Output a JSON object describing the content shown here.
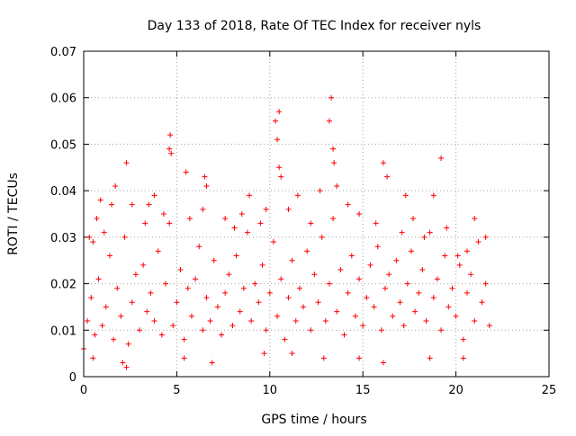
{
  "chart_data": {
    "type": "scatter",
    "title": "Day 133 of 2018, Rate Of TEC Index for receiver nyls",
    "xlabel": "GPS time / hours",
    "ylabel": "ROTI / TECUs",
    "xlim": [
      0,
      25
    ],
    "ylim": [
      0,
      0.07
    ],
    "x_ticks": [
      0,
      5,
      10,
      15,
      20,
      25
    ],
    "y_ticks": [
      0,
      0.01,
      0.02,
      0.03,
      0.04,
      0.05,
      0.06,
      0.07
    ],
    "x_tick_labels": [
      "0",
      "5",
      "10",
      "15",
      "20",
      "25"
    ],
    "y_tick_labels": [
      "0",
      "0.01",
      "0.02",
      "0.03",
      "0.04",
      "0.05",
      "0.06",
      "0.07"
    ],
    "grid": true,
    "marker": "+",
    "series": [
      {
        "name": "ROTI",
        "color": "#ff0000",
        "points": [
          [
            0.0,
            0.006
          ],
          [
            0.2,
            0.012
          ],
          [
            0.4,
            0.017
          ],
          [
            0.6,
            0.009
          ],
          [
            0.8,
            0.021
          ],
          [
            1.0,
            0.011
          ],
          [
            1.2,
            0.015
          ],
          [
            1.4,
            0.026
          ],
          [
            1.6,
            0.008
          ],
          [
            1.8,
            0.019
          ],
          [
            2.0,
            0.013
          ],
          [
            2.2,
            0.03
          ],
          [
            2.4,
            0.007
          ],
          [
            2.6,
            0.016
          ],
          [
            2.8,
            0.022
          ],
          [
            3.0,
            0.01
          ],
          [
            3.2,
            0.024
          ],
          [
            3.4,
            0.014
          ],
          [
            3.6,
            0.018
          ],
          [
            3.8,
            0.012
          ],
          [
            4.0,
            0.027
          ],
          [
            4.2,
            0.009
          ],
          [
            4.4,
            0.02
          ],
          [
            4.6,
            0.033
          ],
          [
            4.8,
            0.011
          ],
          [
            5.0,
            0.016
          ],
          [
            5.2,
            0.023
          ],
          [
            5.4,
            0.008
          ],
          [
            5.6,
            0.019
          ],
          [
            5.8,
            0.013
          ],
          [
            6.0,
            0.021
          ],
          [
            6.2,
            0.028
          ],
          [
            6.4,
            0.01
          ],
          [
            6.6,
            0.017
          ],
          [
            6.8,
            0.012
          ],
          [
            7.0,
            0.025
          ],
          [
            7.2,
            0.015
          ],
          [
            7.4,
            0.009
          ],
          [
            7.6,
            0.018
          ],
          [
            7.8,
            0.022
          ],
          [
            8.0,
            0.011
          ],
          [
            8.2,
            0.026
          ],
          [
            8.4,
            0.014
          ],
          [
            8.6,
            0.019
          ],
          [
            8.8,
            0.031
          ],
          [
            9.0,
            0.012
          ],
          [
            9.2,
            0.02
          ],
          [
            9.4,
            0.016
          ],
          [
            9.6,
            0.024
          ],
          [
            9.8,
            0.01
          ],
          [
            10.0,
            0.018
          ],
          [
            10.2,
            0.029
          ],
          [
            10.4,
            0.013
          ],
          [
            10.6,
            0.021
          ],
          [
            10.8,
            0.008
          ],
          [
            11.0,
            0.017
          ],
          [
            11.2,
            0.025
          ],
          [
            11.4,
            0.012
          ],
          [
            11.6,
            0.019
          ],
          [
            11.8,
            0.015
          ],
          [
            12.0,
            0.027
          ],
          [
            12.2,
            0.01
          ],
          [
            12.4,
            0.022
          ],
          [
            12.6,
            0.016
          ],
          [
            12.8,
            0.03
          ],
          [
            13.0,
            0.012
          ],
          [
            13.2,
            0.02
          ],
          [
            13.4,
            0.034
          ],
          [
            13.6,
            0.014
          ],
          [
            13.8,
            0.023
          ],
          [
            14.0,
            0.009
          ],
          [
            14.2,
            0.018
          ],
          [
            14.4,
            0.026
          ],
          [
            14.6,
            0.013
          ],
          [
            14.8,
            0.021
          ],
          [
            15.0,
            0.011
          ],
          [
            15.2,
            0.017
          ],
          [
            15.4,
            0.024
          ],
          [
            15.6,
            0.015
          ],
          [
            15.8,
            0.028
          ],
          [
            16.0,
            0.01
          ],
          [
            16.2,
            0.019
          ],
          [
            16.4,
            0.022
          ],
          [
            16.6,
            0.013
          ],
          [
            16.8,
            0.025
          ],
          [
            17.0,
            0.016
          ],
          [
            17.2,
            0.011
          ],
          [
            17.4,
            0.02
          ],
          [
            17.6,
            0.027
          ],
          [
            17.8,
            0.014
          ],
          [
            18.0,
            0.018
          ],
          [
            18.2,
            0.023
          ],
          [
            18.4,
            0.012
          ],
          [
            18.6,
            0.031
          ],
          [
            18.8,
            0.017
          ],
          [
            19.0,
            0.021
          ],
          [
            19.2,
            0.01
          ],
          [
            19.4,
            0.026
          ],
          [
            19.6,
            0.015
          ],
          [
            19.8,
            0.019
          ],
          [
            20.0,
            0.013
          ],
          [
            20.2,
            0.024
          ],
          [
            20.4,
            0.008
          ],
          [
            20.6,
            0.018
          ],
          [
            20.8,
            0.022
          ],
          [
            21.0,
            0.012
          ],
          [
            21.2,
            0.029
          ],
          [
            21.4,
            0.016
          ],
          [
            21.6,
            0.02
          ],
          [
            21.8,
            0.011
          ],
          [
            0.3,
            0.03
          ],
          [
            0.5,
            0.029
          ],
          [
            0.7,
            0.034
          ],
          [
            0.9,
            0.038
          ],
          [
            1.1,
            0.031
          ],
          [
            1.5,
            0.037
          ],
          [
            1.7,
            0.041
          ],
          [
            2.3,
            0.046
          ],
          [
            2.6,
            0.037
          ],
          [
            3.3,
            0.033
          ],
          [
            3.5,
            0.037
          ],
          [
            3.8,
            0.039
          ],
          [
            4.3,
            0.035
          ],
          [
            4.6,
            0.049
          ],
          [
            4.65,
            0.052
          ],
          [
            4.7,
            0.048
          ],
          [
            5.5,
            0.044
          ],
          [
            5.7,
            0.034
          ],
          [
            6.4,
            0.036
          ],
          [
            6.5,
            0.043
          ],
          [
            6.6,
            0.041
          ],
          [
            7.6,
            0.034
          ],
          [
            8.1,
            0.032
          ],
          [
            8.5,
            0.035
          ],
          [
            8.9,
            0.039
          ],
          [
            9.5,
            0.033
          ],
          [
            9.8,
            0.036
          ],
          [
            10.3,
            0.055
          ],
          [
            10.4,
            0.051
          ],
          [
            10.5,
            0.057
          ],
          [
            10.5,
            0.045
          ],
          [
            10.6,
            0.043
          ],
          [
            11.0,
            0.036
          ],
          [
            11.5,
            0.039
          ],
          [
            12.2,
            0.033
          ],
          [
            12.7,
            0.04
          ],
          [
            13.2,
            0.055
          ],
          [
            13.3,
            0.06
          ],
          [
            13.4,
            0.049
          ],
          [
            13.45,
            0.046
          ],
          [
            13.6,
            0.041
          ],
          [
            14.2,
            0.037
          ],
          [
            14.8,
            0.035
          ],
          [
            15.7,
            0.033
          ],
          [
            16.1,
            0.046
          ],
          [
            16.3,
            0.043
          ],
          [
            17.1,
            0.031
          ],
          [
            17.3,
            0.039
          ],
          [
            17.7,
            0.034
          ],
          [
            18.3,
            0.03
          ],
          [
            18.8,
            0.039
          ],
          [
            19.2,
            0.047
          ],
          [
            19.5,
            0.032
          ],
          [
            20.1,
            0.026
          ],
          [
            20.6,
            0.027
          ],
          [
            21.0,
            0.034
          ],
          [
            21.6,
            0.03
          ],
          [
            2.3,
            0.002
          ],
          [
            2.1,
            0.003
          ],
          [
            6.9,
            0.003
          ],
          [
            14.8,
            0.004
          ],
          [
            16.1,
            0.003
          ],
          [
            20.4,
            0.004
          ],
          [
            0.5,
            0.004
          ],
          [
            5.4,
            0.004
          ],
          [
            9.7,
            0.005
          ],
          [
            12.9,
            0.004
          ],
          [
            18.6,
            0.004
          ],
          [
            11.2,
            0.005
          ]
        ]
      }
    ]
  }
}
